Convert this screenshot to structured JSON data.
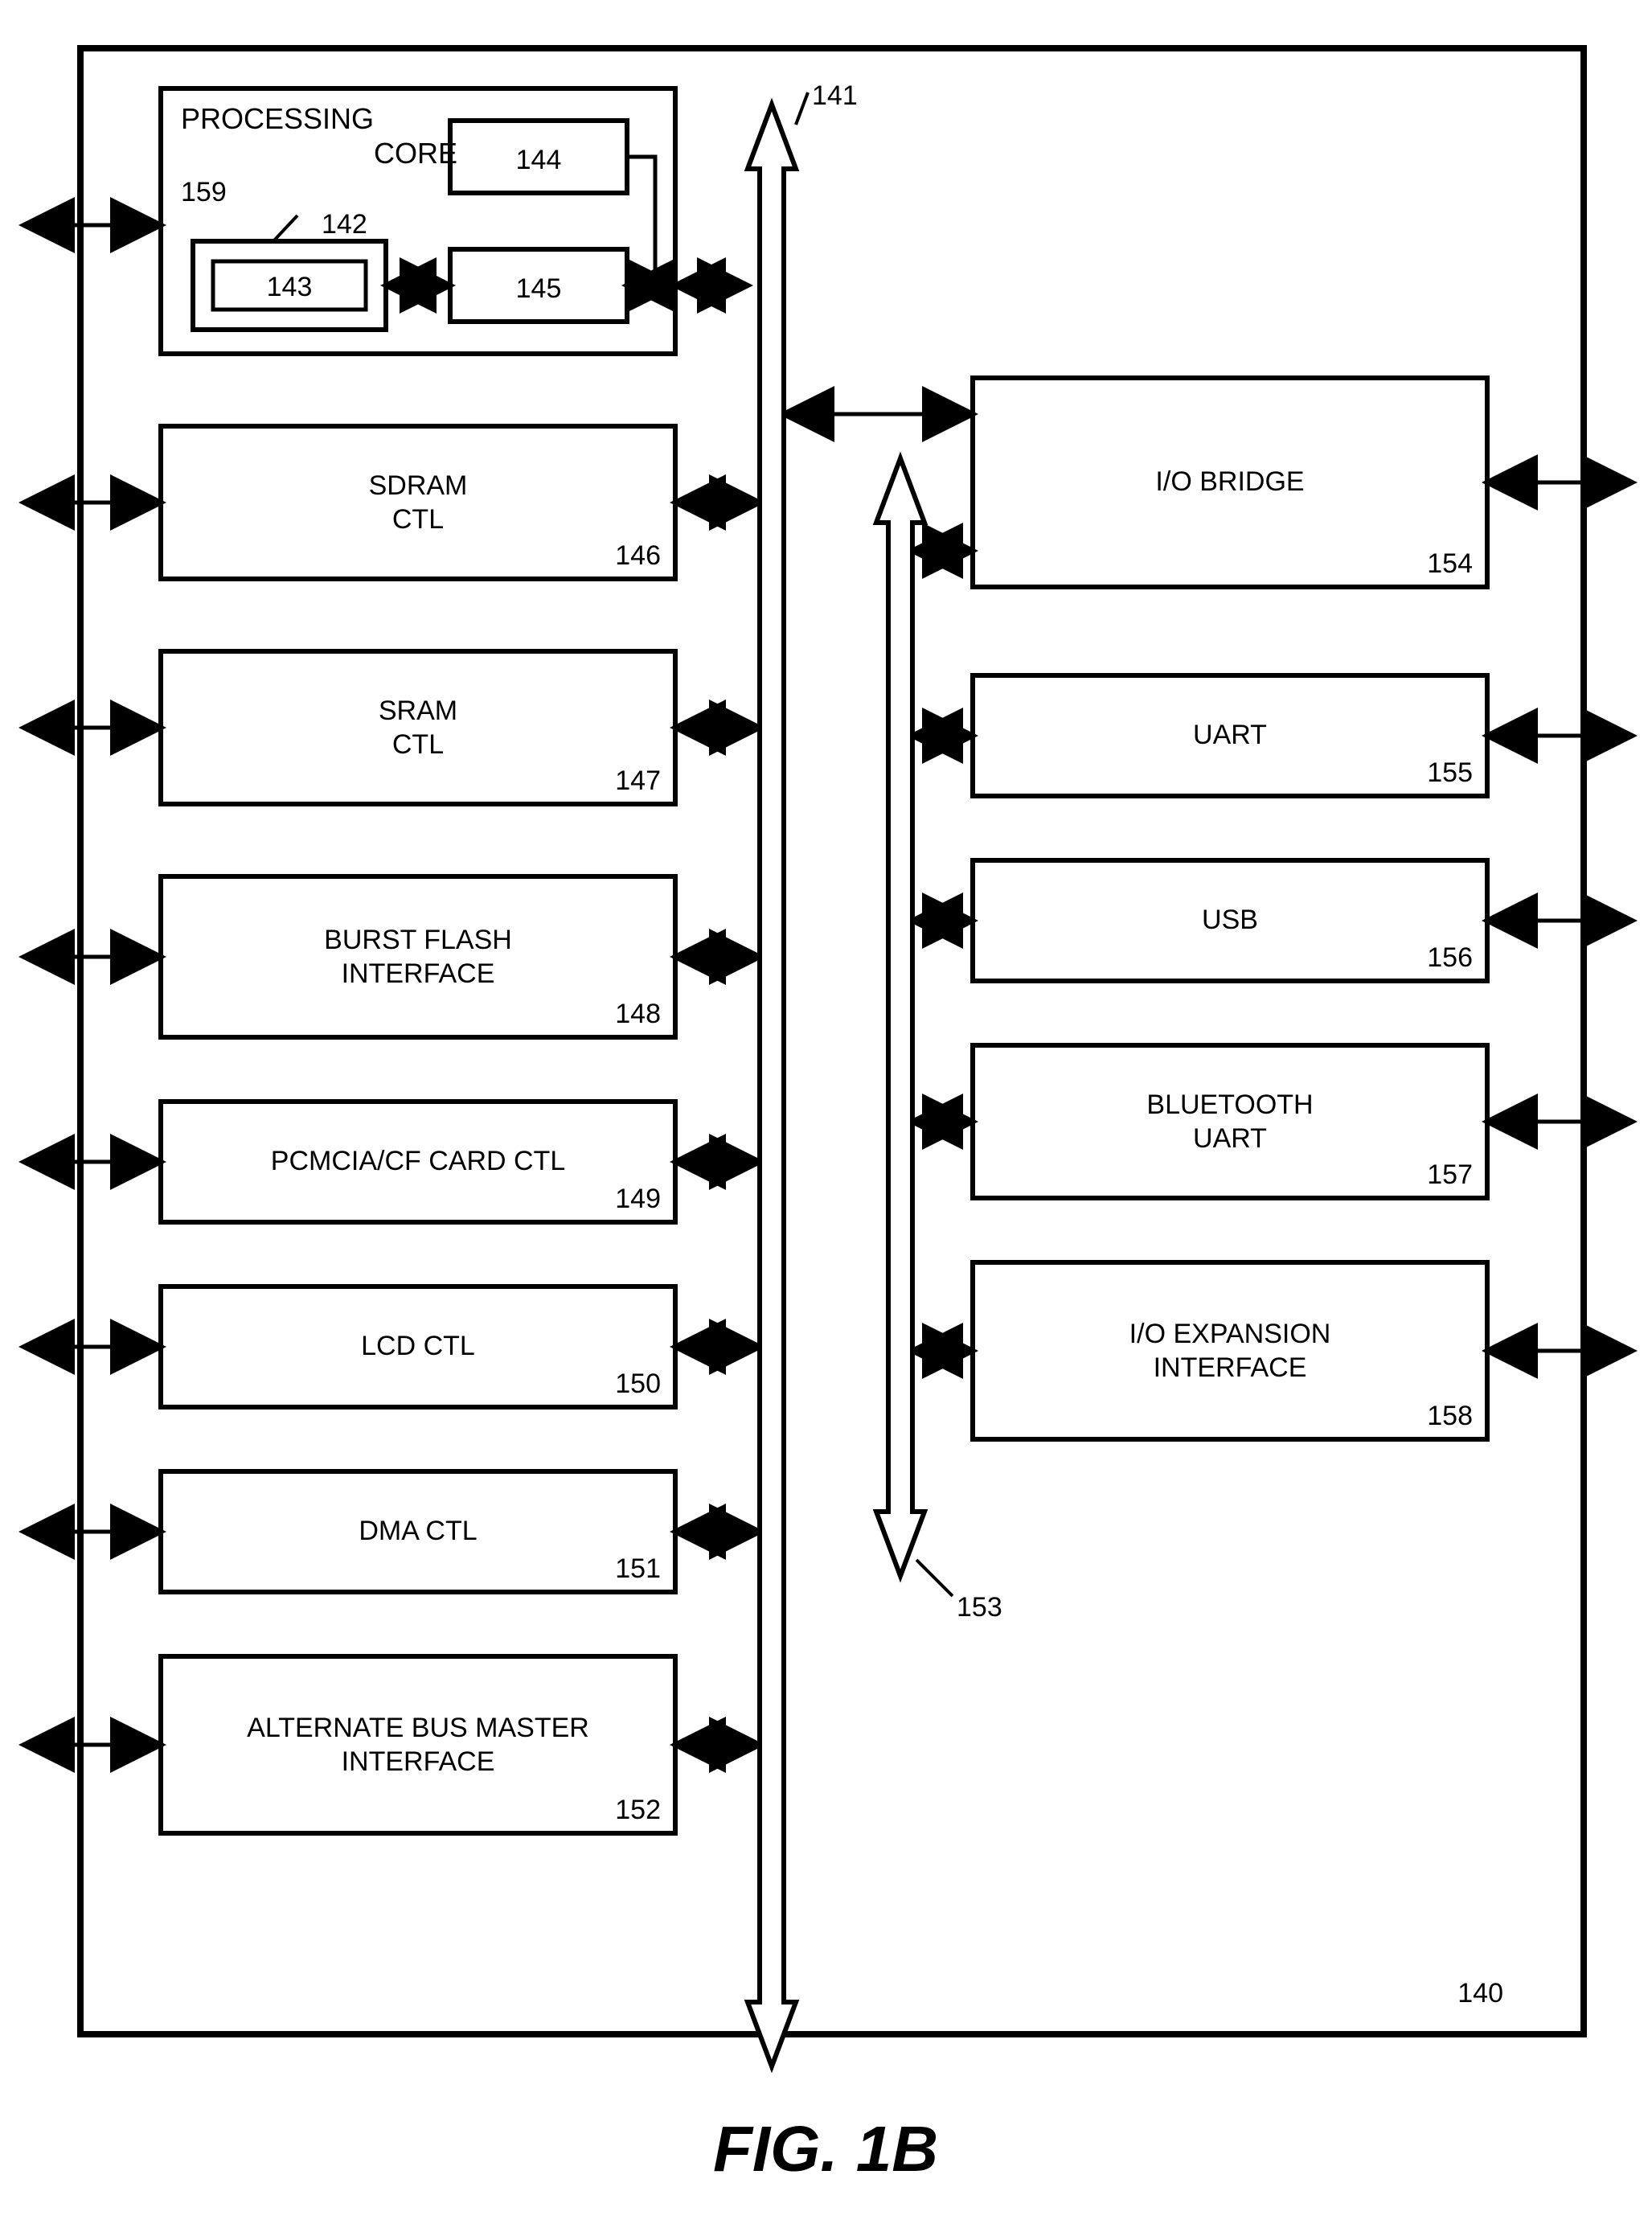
{
  "figure": {
    "caption": "FIG. 1B",
    "outer_ref": "140",
    "stroke": "#000000",
    "fill": "#ffffff",
    "stroke_width_thick": 8,
    "stroke_width_med": 6,
    "stroke_width_thin": 5,
    "font_family": "Arial",
    "box_font_size": 34,
    "title_font_size": 36,
    "fig_font_size": 80
  },
  "processing_core": {
    "title": "PROCESSING\nCORE",
    "ref": "159",
    "inner_ref_142": "142",
    "inner_ref_143": "143",
    "inner_ref_144": "144",
    "inner_ref_145": "145"
  },
  "bus": {
    "left_ref": "141",
    "right_ref": "153"
  },
  "left_blocks": [
    {
      "label": "SDRAM\nCTL",
      "ref": "146"
    },
    {
      "label": "SRAM\nCTL",
      "ref": "147"
    },
    {
      "label": "BURST FLASH\nINTERFACE",
      "ref": "148"
    },
    {
      "label": "PCMCIA/CF CARD CTL",
      "ref": "149"
    },
    {
      "label": "LCD CTL",
      "ref": "150"
    },
    {
      "label": "DMA CTL",
      "ref": "151"
    },
    {
      "label": "ALTERNATE BUS MASTER\nINTERFACE",
      "ref": "152"
    }
  ],
  "right_blocks": [
    {
      "label": "I/O BRIDGE",
      "ref": "154"
    },
    {
      "label": "UART",
      "ref": "155"
    },
    {
      "label": "USB",
      "ref": "156"
    },
    {
      "label": "BLUETOOTH\nUART",
      "ref": "157"
    },
    {
      "label": "I/O EXPANSION\nINTERFACE",
      "ref": "158"
    }
  ]
}
